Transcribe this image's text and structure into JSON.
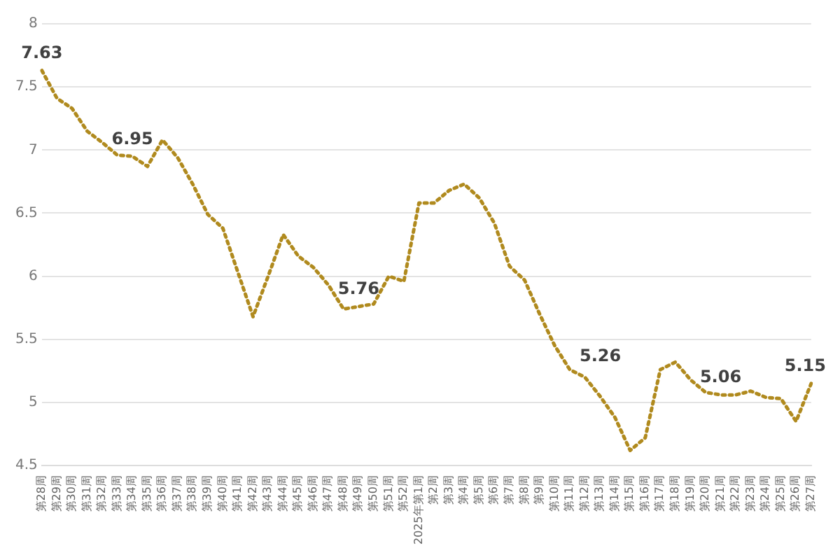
{
  "chart_data": {
    "type": "line",
    "categories": [
      "第28周",
      "第29周",
      "第30周",
      "第31周",
      "第32周",
      "第33周",
      "第34周",
      "第35周",
      "第36周",
      "第37周",
      "第38周",
      "第39周",
      "第40周",
      "第41周",
      "第42周",
      "第43周",
      "第44周",
      "第45周",
      "第46周",
      "第47周",
      "第48周",
      "第49周",
      "第50周",
      "第51周",
      "第52周",
      "2025年第1周",
      "第2周",
      "第3周",
      "第4周",
      "第5周",
      "第6周",
      "第7周",
      "第8周",
      "第9周",
      "第10周",
      "第11周",
      "第12周",
      "第13周",
      "第14周",
      "第15周",
      "第16周",
      "第17周",
      "第18周",
      "第19周",
      "第20周",
      "第21周",
      "第22周",
      "第23周",
      "第24周",
      "第25周",
      "第26周",
      "第27周"
    ],
    "series": [
      {
        "color": "#b08a1e",
        "values": [
          7.63,
          7.41,
          7.33,
          7.15,
          7.06,
          6.96,
          6.95,
          6.87,
          7.08,
          6.94,
          6.73,
          6.49,
          6.38,
          6.03,
          5.68,
          6.0,
          6.33,
          6.16,
          6.07,
          5.93,
          5.74,
          5.76,
          5.78,
          6.0,
          5.96,
          6.58,
          6.58,
          6.68,
          6.73,
          6.62,
          6.42,
          6.08,
          5.97,
          5.7,
          5.45,
          5.26,
          5.2,
          5.05,
          4.88,
          4.62,
          4.72,
          5.26,
          5.32,
          5.18,
          5.08,
          5.06,
          5.06,
          5.09,
          5.04,
          5.03,
          4.85,
          5.15
        ],
        "value_labels": [
          "7.63",
          null,
          null,
          null,
          null,
          null,
          "6.95",
          null,
          null,
          null,
          null,
          null,
          null,
          null,
          null,
          null,
          null,
          null,
          null,
          null,
          null,
          "5.76",
          null,
          null,
          null,
          null,
          null,
          null,
          null,
          null,
          null,
          null,
          null,
          null,
          null,
          "5.26",
          null,
          null,
          null,
          null,
          null,
          null,
          null,
          null,
          null,
          "5.06",
          null,
          null,
          null,
          null,
          null,
          "5.15"
        ]
      }
    ],
    "ylim": [
      4.5,
      8
    ],
    "yticks": [
      4.5,
      5,
      5.5,
      6,
      6.5,
      7,
      7.5,
      8
    ],
    "grid": "y",
    "legend": false,
    "marker": "none",
    "line_style": "dotted"
  }
}
